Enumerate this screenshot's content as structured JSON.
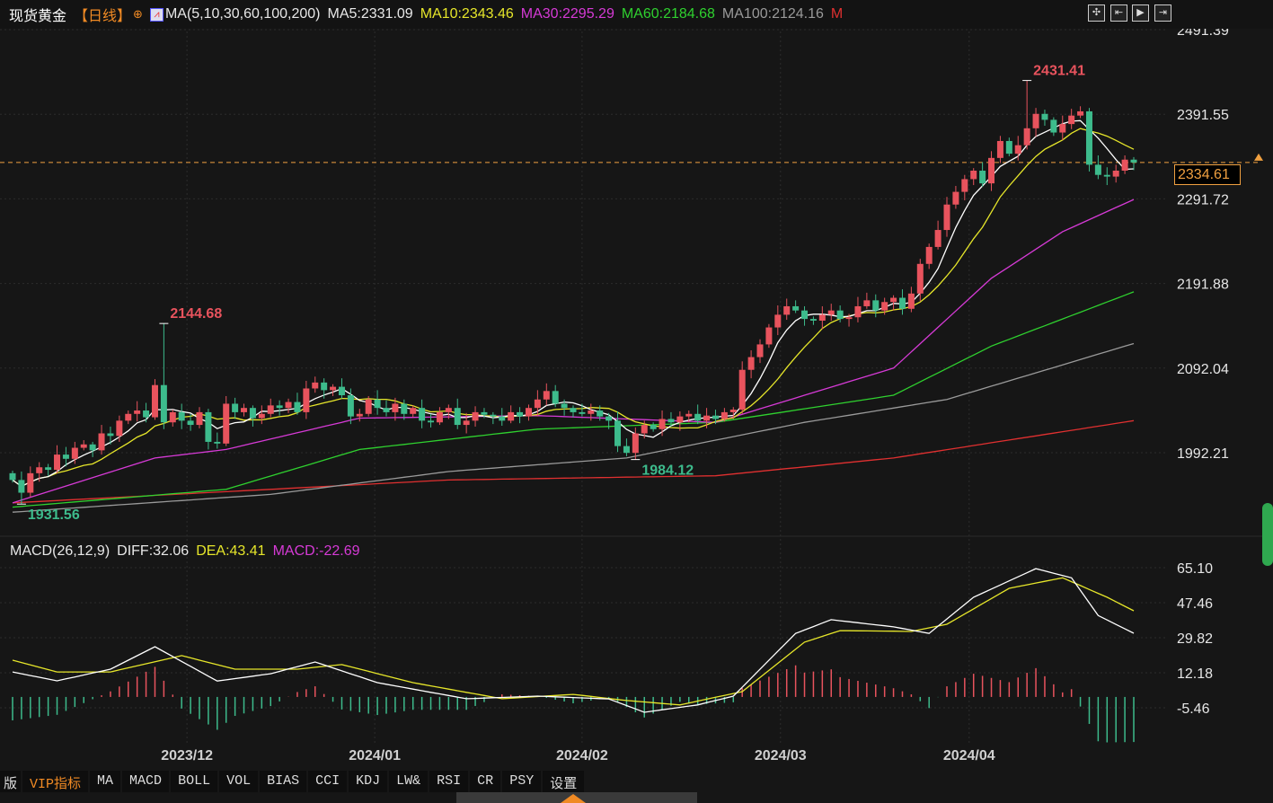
{
  "header": {
    "title": "现货黄金",
    "period": "【日线】",
    "ma_label": "MA(5,10,30,60,100,200)",
    "ma5": "MA5:2331.09",
    "ma10": "MA10:2343.46",
    "ma30": "MA30:2295.29",
    "ma60": "MA60:2184.68",
    "ma100": "MA100:2124.16",
    "more": "M",
    "toolbar": [
      "crosshair-icon",
      "zoom-start-icon",
      "play-icon",
      "exit-icon"
    ]
  },
  "colors": {
    "up": "#e8535d",
    "down": "#3dbb8c",
    "ma5": "#ffffff",
    "ma10": "#e6e62a",
    "ma30": "#d63ad6",
    "ma60": "#2fd12f",
    "ma100": "#9a9a9a",
    "ma200": "#e03030",
    "last": "#f0a040",
    "accent": "#f08a24"
  },
  "macd_header": {
    "label": "MACD(26,12,9)",
    "diff": "DIFF:32.06",
    "dea": "DEA:43.41",
    "macd": "MACD:-22.69"
  },
  "last_price": "2334.61",
  "tabs": [
    "VIP指标",
    "MA",
    "MACD",
    "BOLL",
    "VOL",
    "BIAS",
    "CCI",
    "KDJ",
    "LW&",
    "RSI",
    "CR",
    "PSY",
    "设置"
  ],
  "tab_partial": "版",
  "chart_data": [
    {
      "type": "candlestick",
      "title": "现货黄金",
      "ylim": [
        1992.21,
        2491.39
      ],
      "grid": true,
      "yticks": [
        "2491.39",
        "2391.55",
        "2291.72",
        "2191.88",
        "2092.04",
        "1992.21"
      ],
      "xticks": [
        {
          "label": "2023/12",
          "index": 19.6
        },
        {
          "label": "2024/01",
          "index": 40.7
        },
        {
          "label": "2024/02",
          "index": 64
        },
        {
          "label": "2024/03",
          "index": 86.3
        },
        {
          "label": "2024/04",
          "index": 107.5
        }
      ],
      "close": [
        1960,
        1945,
        1968,
        1975,
        1972,
        1990,
        1985,
        1998,
        2002,
        1995,
        2015,
        2012,
        2030,
        2038,
        2042,
        2034,
        2072,
        2028,
        2040,
        2030,
        2025,
        2040,
        2005,
        2003,
        2050,
        2040,
        2045,
        2033,
        2038,
        2048,
        2045,
        2052,
        2040,
        2068,
        2075,
        2066,
        2070,
        2060,
        2035,
        2038,
        2055,
        2045,
        2040,
        2050,
        2038,
        2045,
        2030,
        2028,
        2040,
        2045,
        2025,
        2030,
        2040,
        2037,
        2035,
        2030,
        2040,
        2035,
        2045,
        2055,
        2065,
        2050,
        2045,
        2040,
        2038,
        2042,
        2035,
        2030,
        2000,
        1992,
        2015,
        2025,
        2020,
        2032,
        2028,
        2035,
        2038,
        2030,
        2036,
        2032,
        2040,
        2043,
        2090,
        2105,
        2120,
        2140,
        2155,
        2165,
        2160,
        2150,
        2148,
        2155,
        2160,
        2150,
        2152,
        2165,
        2172,
        2160,
        2170,
        2175,
        2162,
        2180,
        2215,
        2235,
        2255,
        2285,
        2300,
        2315,
        2325,
        2310,
        2340,
        2360,
        2345,
        2355,
        2375,
        2392,
        2385,
        2370,
        2380,
        2390,
        2395,
        2332,
        2320,
        2318,
        2325,
        2338,
        2334.61
      ],
      "annotations": [
        {
          "label": "2144.68",
          "index": 17,
          "value": 2144.68,
          "kind": "high"
        },
        {
          "label": "2431.41",
          "index": 114,
          "value": 2431.41,
          "kind": "high"
        },
        {
          "label": "1984.12",
          "index": 70,
          "value": 1984.12,
          "kind": "low"
        },
        {
          "label": "1931.56",
          "index": 1,
          "value": 1931.56,
          "kind": "low"
        }
      ],
      "ma": [
        {
          "name": "MA30",
          "color": "#d63ad6",
          "points": [
            [
              0,
              1933
            ],
            [
              16,
              1986
            ],
            [
              24,
              1996
            ],
            [
              39,
              2033
            ],
            [
              59,
              2036
            ],
            [
              79,
              2028
            ],
            [
              89,
              2060
            ],
            [
              99,
              2092
            ],
            [
              110,
              2198
            ],
            [
              118,
              2253
            ],
            [
              126,
              2291
            ]
          ]
        },
        {
          "name": "MA60",
          "color": "#2fd12f",
          "points": [
            [
              0,
              1928
            ],
            [
              24,
              1949
            ],
            [
              39,
              1996
            ],
            [
              59,
              2020
            ],
            [
              79,
              2028
            ],
            [
              89,
              2044
            ],
            [
              99,
              2060
            ],
            [
              110,
              2118
            ],
            [
              126,
              2182
            ]
          ]
        },
        {
          "name": "MA100",
          "color": "#9a9a9a",
          "points": [
            [
              0,
              1922
            ],
            [
              29,
              1943
            ],
            [
              49,
              1970
            ],
            [
              69,
              1986
            ],
            [
              89,
              2028
            ],
            [
              105,
              2055
            ],
            [
              126,
              2121
            ]
          ]
        },
        {
          "name": "MA200",
          "color": "#e03030",
          "points": [
            [
              0,
              1933
            ],
            [
              29,
              1949
            ],
            [
              49,
              1960
            ],
            [
              79,
              1965
            ],
            [
              99,
              1986
            ],
            [
              126,
              2030
            ]
          ]
        }
      ]
    },
    {
      "type": "macd",
      "ylim": [
        -5.46,
        65.1
      ],
      "yticks": [
        "65.10",
        "47.46",
        "29.82",
        "12.18",
        "-5.46"
      ],
      "diff": [
        [
          0,
          12.6
        ],
        [
          5,
          8.1
        ],
        [
          11,
          14
        ],
        [
          16,
          25.3
        ],
        [
          23,
          8
        ],
        [
          29,
          11.7
        ],
        [
          34,
          17.6
        ],
        [
          41,
          7.2
        ],
        [
          51,
          -0.9
        ],
        [
          59,
          0.4
        ],
        [
          67,
          -1
        ],
        [
          71,
          -7.7
        ],
        [
          77,
          -4
        ],
        [
          81,
          0.4
        ],
        [
          88,
          32
        ],
        [
          92,
          38.9
        ],
        [
          99,
          35.3
        ],
        [
          103,
          32
        ],
        [
          108,
          50.2
        ],
        [
          115,
          64.6
        ],
        [
          119,
          60
        ],
        [
          122,
          41
        ],
        [
          126,
          32.06
        ]
      ],
      "dea": [
        [
          0,
          18.5
        ],
        [
          5,
          12.6
        ],
        [
          11,
          12.6
        ],
        [
          19,
          20.8
        ],
        [
          25,
          14
        ],
        [
          32,
          14
        ],
        [
          37,
          16.3
        ],
        [
          45,
          7.2
        ],
        [
          55,
          -0.9
        ],
        [
          63,
          1.3
        ],
        [
          69,
          -1.8
        ],
        [
          75,
          -4
        ],
        [
          82,
          2.7
        ],
        [
          89,
          27.6
        ],
        [
          93,
          33.4
        ],
        [
          101,
          33
        ],
        [
          105,
          36.6
        ],
        [
          112,
          54.7
        ],
        [
          118,
          60
        ],
        [
          123,
          50.2
        ],
        [
          126,
          43.41
        ]
      ]
    }
  ]
}
